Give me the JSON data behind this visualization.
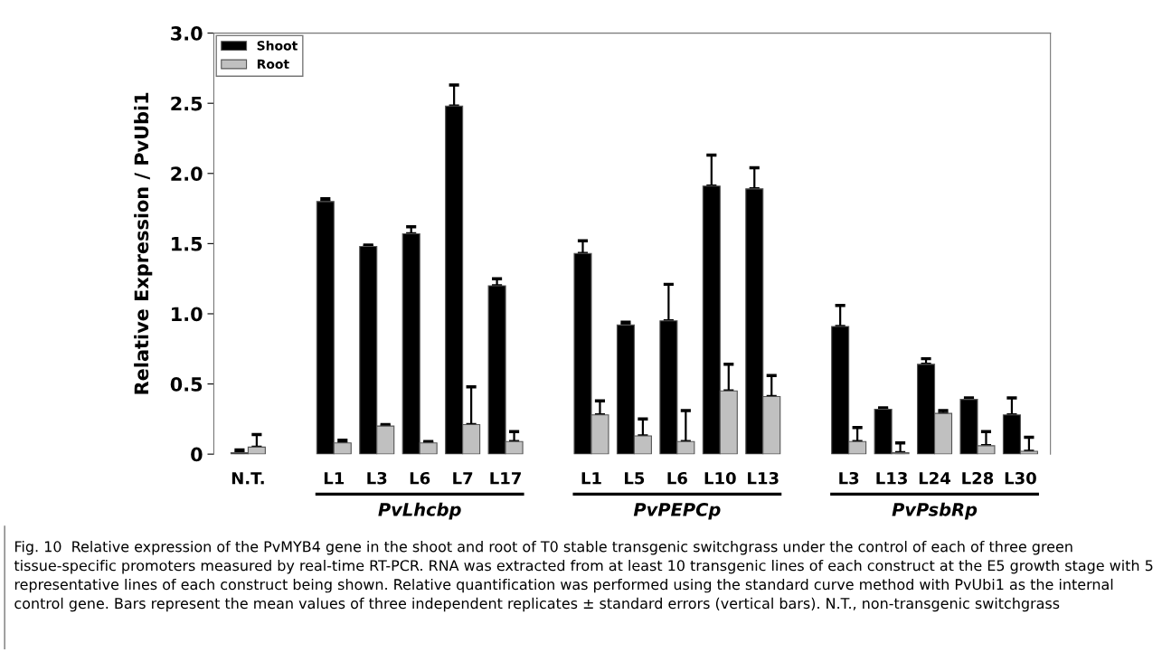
{
  "chart_data": {
    "type": "bar",
    "ylabel": "Relative Expression / PvUbi1",
    "categories": [
      "N.T.",
      null,
      "L1",
      "L3",
      "L6",
      "L7",
      "L17",
      null,
      "L1",
      "L5",
      "L6",
      "L10",
      "L13",
      null,
      "L3",
      "L13",
      "L24",
      "L28",
      "L30"
    ],
    "series": [
      {
        "name": "Shoot",
        "color": "#000000",
        "values": [
          0.01,
          null,
          1.8,
          1.48,
          1.57,
          2.48,
          1.2,
          null,
          1.43,
          0.92,
          0.95,
          1.91,
          1.89,
          null,
          0.91,
          0.32,
          0.64,
          0.39,
          0.28
        ],
        "errors": [
          [
            0.01,
            0.03
          ],
          null,
          [
            1.8,
            1.82
          ],
          [
            1.48,
            1.49
          ],
          [
            1.57,
            1.62
          ],
          [
            2.48,
            2.63
          ],
          [
            1.2,
            1.25
          ],
          null,
          [
            1.43,
            1.52
          ],
          [
            0.92,
            0.94
          ],
          [
            0.95,
            1.21
          ],
          [
            1.91,
            2.13
          ],
          [
            1.89,
            2.04
          ],
          null,
          [
            0.91,
            1.06
          ],
          [
            0.32,
            0.33
          ],
          [
            0.64,
            0.68
          ],
          [
            0.39,
            0.4
          ],
          [
            0.28,
            0.4
          ]
        ]
      },
      {
        "name": "Root",
        "color": "#c0c0c0",
        "values": [
          0.05,
          null,
          0.08,
          0.2,
          0.08,
          0.21,
          0.09,
          null,
          0.28,
          0.13,
          0.09,
          0.45,
          0.41,
          null,
          0.09,
          0.01,
          0.29,
          0.06,
          0.02
        ],
        "errors": [
          [
            0.05,
            0.14
          ],
          null,
          [
            0.08,
            0.1
          ],
          [
            0.2,
            0.21
          ],
          [
            0.08,
            0.09
          ],
          [
            0.21,
            0.48
          ],
          [
            0.09,
            0.16
          ],
          null,
          [
            0.28,
            0.38
          ],
          [
            0.13,
            0.25
          ],
          [
            0.09,
            0.31
          ],
          [
            0.45,
            0.64
          ],
          [
            0.41,
            0.56
          ],
          null,
          [
            0.09,
            0.19
          ],
          [
            0.01,
            0.08
          ],
          [
            0.29,
            0.31
          ],
          [
            0.06,
            0.16
          ],
          [
            0.02,
            0.12
          ]
        ]
      }
    ],
    "ylim": [
      0,
      3.0
    ],
    "yticks": [
      0,
      {
        "value": 0.5,
        "label": "0.5"
      },
      {
        "value": 1,
        "label": "1.0"
      },
      {
        "value": 1.5,
        "label": "1.5"
      },
      {
        "value": 2,
        "label": "2.0"
      },
      {
        "value": 2.5,
        "label": "2.5"
      },
      {
        "value": 3,
        "label": "3.0"
      }
    ],
    "legend": "top left",
    "grid": false,
    "annotations": [
      "PvLhcbp",
      "PvPEPCp",
      "PvPsbRp",
      "Fig. 10  Relative expression of the PvMYB4 gene in the shoot and root of T0 stable transgenic switchgrass under the control of each of three green tissue-specific promoters measured by real-time RT-PCR. RNA was extracted from at least 10 transgenic lines of each construct at the E5 growth stage with 5 representative lines of each construct being shown. Relative quantification was performed using the standard curve method with PvUbi1 as the internal control gene. Bars represent the mean values of three independent replicates ± standard errors (vertical bars). N.T., non-transgenic switchgrass"
    ]
  }
}
